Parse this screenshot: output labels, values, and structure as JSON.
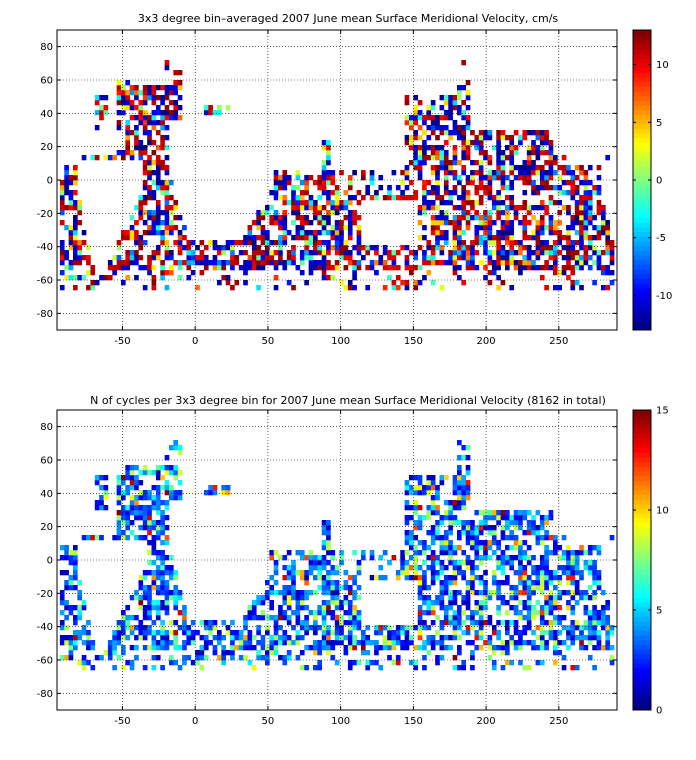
{
  "chart_data": [
    {
      "type": "heatmap",
      "title": "3x3 degree bin–averaged 2007 June mean Surface Meridional Velocity, cm/s",
      "xlabel": "",
      "ylabel": "",
      "xlim": [
        -95,
        290
      ],
      "ylim": [
        -90,
        90
      ],
      "x_ticks": [
        -50,
        0,
        50,
        100,
        150,
        200,
        250
      ],
      "y_ticks": [
        -80,
        -60,
        -40,
        -20,
        0,
        20,
        40,
        60,
        80
      ],
      "grid": true,
      "grid_style": "dotted",
      "bin_size_degrees": 3,
      "colorbar": {
        "range": [
          -13,
          13
        ],
        "ticks": [
          10,
          5,
          0,
          -5,
          -10
        ],
        "colormap": "jet"
      },
      "field": "Surface Meridional Velocity (cm/s), sparse scattered bins over oceans, mostly between -65 and 65 latitude"
    },
    {
      "type": "heatmap",
      "title": "N of cycles per 3x3 degree bin for 2007 June mean Surface Meridional Velocity (8162 in total)",
      "xlabel": "",
      "ylabel": "",
      "xlim": [
        -95,
        290
      ],
      "ylim": [
        -90,
        90
      ],
      "x_ticks": [
        -50,
        0,
        50,
        100,
        150,
        200,
        250
      ],
      "y_ticks": [
        -80,
        -60,
        -40,
        -20,
        0,
        20,
        40,
        60,
        80
      ],
      "grid": true,
      "grid_style": "dotted",
      "bin_size_degrees": 3,
      "colorbar": {
        "range": [
          0,
          15
        ],
        "ticks": [
          15,
          10,
          5,
          0
        ],
        "colormap": "jet"
      },
      "field": "Number of cycles per bin, mostly 1-4 (blue), occasional higher counts"
    }
  ]
}
